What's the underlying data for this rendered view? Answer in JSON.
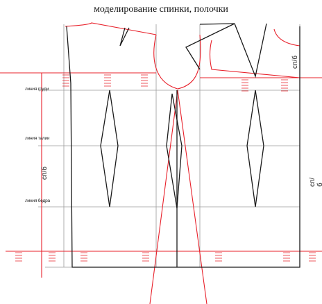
{
  "title": "моделирование спинки,  полочки",
  "labels": {
    "chest": "линия груди",
    "waist": "линия талии",
    "hip": "линия бедра",
    "back_width": "сп/б",
    "front_width": "сп/б",
    "side_width": "сп/б"
  },
  "colors": {
    "construction": "#e8202a",
    "pattern": "#1a1a1a",
    "grid": "#9a9a9a",
    "hatch": "#e8202a"
  }
}
